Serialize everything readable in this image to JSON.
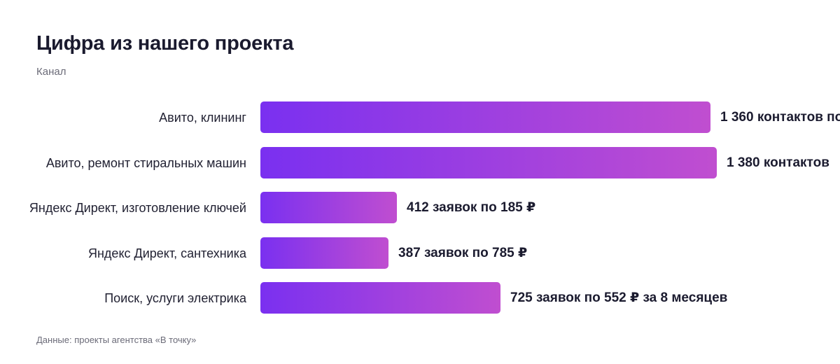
{
  "title": "Цифра из нашего проекта",
  "subtitle": "Канал",
  "source": "Данные: проекты агентства «В точку»",
  "colors": {
    "bar_start": "#7a30f0",
    "bar_end": "#c04ed0"
  },
  "chart_data": {
    "type": "bar",
    "orientation": "horizontal",
    "categories": [
      "Авито, клининг",
      "Авито, ремонт стиральных машин",
      "Яндекс Директ, изготовление ключей",
      "Яндекс Директ, сантехника",
      "Поиск, услуги электрика"
    ],
    "values": [
      1360,
      1380,
      412,
      387,
      725
    ],
    "value_labels": [
      "1 360 контактов по",
      "1 380 контактов",
      "412 заявок по 185 ₽",
      "387 заявок по 785 ₽",
      "725 заявок по 552 ₽ за 8 месяцев"
    ],
    "title": "Цифра из нашего проекта",
    "xlabel": "",
    "ylabel": "Канал",
    "xlim": [
      0,
      1380
    ],
    "grid": false,
    "legend": "none"
  }
}
